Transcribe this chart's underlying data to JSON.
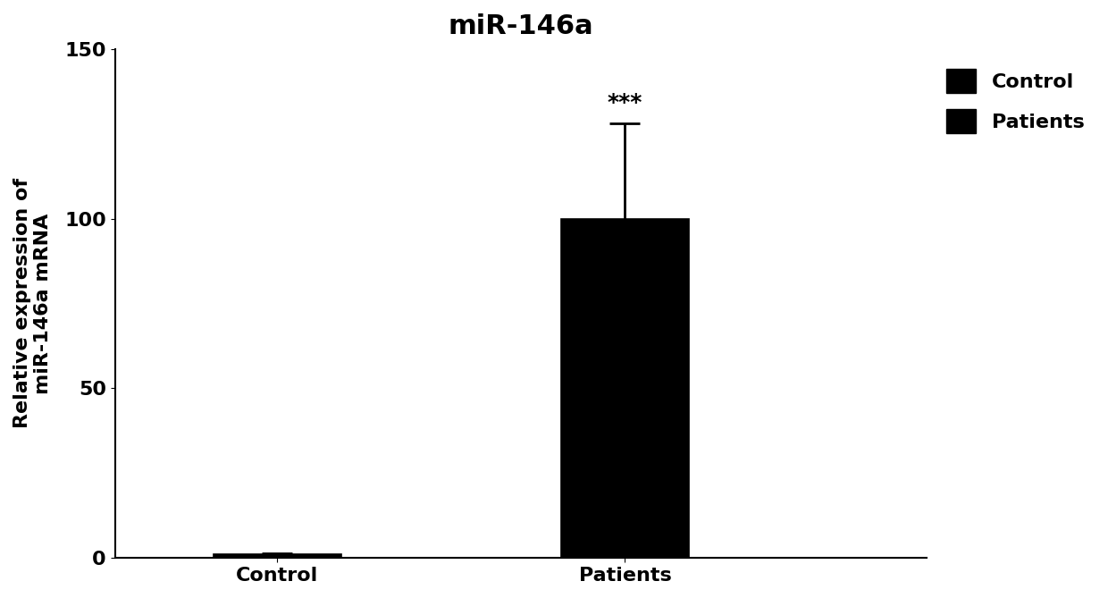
{
  "title": "miR-146a",
  "ylabel": "Relative expression of\nmiR-146a mRNA",
  "categories": [
    "Control",
    "Patients"
  ],
  "values": [
    1.0,
    100.0
  ],
  "errors": [
    0.5,
    28.0
  ],
  "bar_colors": [
    "#000000",
    "#000000"
  ],
  "ylim": [
    0,
    150
  ],
  "yticks": [
    0,
    50,
    100,
    150
  ],
  "significance_label": "***",
  "legend_labels": [
    "Control",
    "Patients"
  ],
  "title_fontsize": 22,
  "ylabel_fontsize": 16,
  "tick_fontsize": 16,
  "legend_fontsize": 16,
  "bar_width": 0.55,
  "x_positions": [
    1.0,
    2.5
  ],
  "xlim": [
    0.3,
    3.8
  ],
  "background_color": "#ffffff"
}
